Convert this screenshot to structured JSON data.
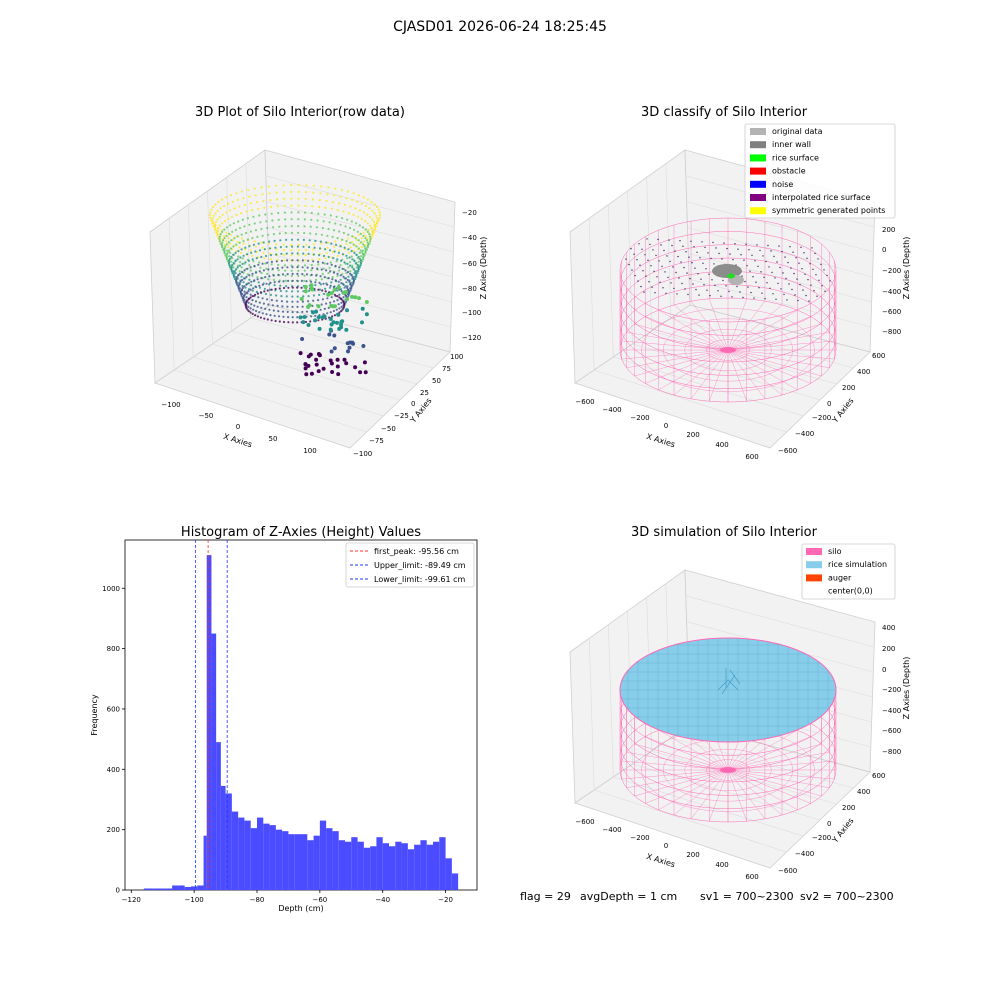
{
  "suptitle": "CJASD01 2026-06-24 18:25:45",
  "footer": {
    "flag": "flag = 29",
    "avg_depth": "avgDepth = 1 cm",
    "sv1": "sv1 = 700~2300",
    "sv2": "sv2 = 700~2300"
  },
  "colors": {
    "hist_bar": "#4b4bff",
    "peak_line": "#ff3333",
    "limit_line": "#2233ff",
    "silo": "#ff69b4",
    "rice": "#87ceeb",
    "auger": "#ff4500",
    "viridis": [
      "#440154",
      "#3b528b",
      "#21918c",
      "#5ec962",
      "#fde725"
    ]
  },
  "panel_tl": {
    "title": "3D Plot of Silo Interior(row data)",
    "xlabel": "X Axies",
    "ylabel": "Y Axies",
    "zlabel": "Z Axies (Depth)",
    "xticks": [
      "−100",
      "−50",
      "0",
      "50",
      "100"
    ],
    "yticks": [
      "100",
      "75",
      "50",
      "25",
      "0",
      "−25",
      "−50",
      "−75",
      "−100"
    ],
    "zticks": [
      "−20",
      "−40",
      "−60",
      "−80",
      "−100",
      "−120"
    ]
  },
  "panel_tr": {
    "title": "3D classify of Silo Interior",
    "xlabel": "X Axies",
    "ylabel": "Y Axies",
    "zlabel": "Z Axies (Depth)",
    "xticks": [
      "−600",
      "−400",
      "−200",
      "0",
      "200",
      "400",
      "600"
    ],
    "yticks": [
      "600",
      "400",
      "200",
      "0",
      "−200",
      "−400",
      "−600"
    ],
    "zticks": [
      "200",
      "0",
      "−200",
      "−400",
      "−600",
      "−800"
    ],
    "legend": [
      {
        "label": "original data",
        "color": "#b3b3b3"
      },
      {
        "label": "inner wall",
        "color": "#808080"
      },
      {
        "label": "rice surface",
        "color": "#00ff00"
      },
      {
        "label": "obstacle",
        "color": "#ff0000"
      },
      {
        "label": "noise",
        "color": "#0000ff"
      },
      {
        "label": "interpolated rice surface",
        "color": "#800080"
      },
      {
        "label": "symmetric generated points",
        "color": "#ffff00"
      }
    ]
  },
  "panel_br": {
    "title": "3D simulation of Silo Interior",
    "xlabel": "X Axies",
    "ylabel": "Y Axies",
    "zlabel": "Z Axies (Depth)",
    "xticks": [
      "−600",
      "−400",
      "−200",
      "0",
      "200",
      "400",
      "600"
    ],
    "yticks": [
      "600",
      "400",
      "200",
      "0",
      "−200",
      "−400",
      "−600"
    ],
    "zticks": [
      "400",
      "200",
      "0",
      "−200",
      "−400",
      "−600",
      "−800"
    ],
    "legend": [
      {
        "label": "silo",
        "color": "#ff69b4"
      },
      {
        "label": "rice simulation",
        "color": "#87ceeb"
      },
      {
        "label": "auger",
        "color": "#ff4500"
      },
      {
        "label": "center(0,0)",
        "color": "#ffffff"
      }
    ]
  },
  "chart_data": {
    "type": "bar",
    "title": "Histogram of Z-Axies (Height) Values",
    "xlabel": "Depth (cm)",
    "ylabel": "Frequency",
    "xlim": [
      -122,
      -10
    ],
    "ylim": [
      0,
      1160
    ],
    "xticks": [
      -120,
      -100,
      -80,
      -60,
      -40,
      -20
    ],
    "yticks": [
      0,
      200,
      400,
      600,
      800,
      1000
    ],
    "bins": [
      {
        "x0": -116,
        "x1": -113,
        "value": 5
      },
      {
        "x0": -113,
        "x1": -110,
        "value": 5
      },
      {
        "x0": -110,
        "x1": -107,
        "value": 5
      },
      {
        "x0": -107,
        "x1": -105,
        "value": 15
      },
      {
        "x0": -105,
        "x1": -103,
        "value": 15
      },
      {
        "x0": -103,
        "x1": -101,
        "value": 10
      },
      {
        "x0": -101,
        "x1": -99,
        "value": 12
      },
      {
        "x0": -99,
        "x1": -97,
        "value": 15
      },
      {
        "x0": -97,
        "x1": -96,
        "value": 180
      },
      {
        "x0": -96,
        "x1": -94.5,
        "value": 1110
      },
      {
        "x0": -94.5,
        "x1": -93,
        "value": 850
      },
      {
        "x0": -93,
        "x1": -91.5,
        "value": 490
      },
      {
        "x0": -91.5,
        "x1": -90,
        "value": 345
      },
      {
        "x0": -90,
        "x1": -88,
        "value": 320
      },
      {
        "x0": -88,
        "x1": -86,
        "value": 260
      },
      {
        "x0": -86,
        "x1": -84,
        "value": 240
      },
      {
        "x0": -84,
        "x1": -82,
        "value": 230
      },
      {
        "x0": -82,
        "x1": -80,
        "value": 205
      },
      {
        "x0": -80,
        "x1": -78,
        "value": 240
      },
      {
        "x0": -78,
        "x1": -76,
        "value": 220
      },
      {
        "x0": -76,
        "x1": -74,
        "value": 215
      },
      {
        "x0": -74,
        "x1": -72,
        "value": 200
      },
      {
        "x0": -72,
        "x1": -70,
        "value": 195
      },
      {
        "x0": -70,
        "x1": -68,
        "value": 185
      },
      {
        "x0": -68,
        "x1": -66,
        "value": 185
      },
      {
        "x0": -66,
        "x1": -64,
        "value": 185
      },
      {
        "x0": -64,
        "x1": -62,
        "value": 165
      },
      {
        "x0": -62,
        "x1": -60,
        "value": 180
      },
      {
        "x0": -60,
        "x1": -58,
        "value": 230
      },
      {
        "x0": -58,
        "x1": -56,
        "value": 205
      },
      {
        "x0": -56,
        "x1": -54,
        "value": 195
      },
      {
        "x0": -54,
        "x1": -52,
        "value": 165
      },
      {
        "x0": -52,
        "x1": -50,
        "value": 160
      },
      {
        "x0": -50,
        "x1": -48,
        "value": 175
      },
      {
        "x0": -48,
        "x1": -46,
        "value": 160
      },
      {
        "x0": -46,
        "x1": -44,
        "value": 140
      },
      {
        "x0": -44,
        "x1": -42,
        "value": 145
      },
      {
        "x0": -42,
        "x1": -40,
        "value": 175
      },
      {
        "x0": -40,
        "x1": -38,
        "value": 155
      },
      {
        "x0": -38,
        "x1": -36,
        "value": 145
      },
      {
        "x0": -36,
        "x1": -34,
        "value": 160
      },
      {
        "x0": -34,
        "x1": -32,
        "value": 155
      },
      {
        "x0": -32,
        "x1": -30,
        "value": 135
      },
      {
        "x0": -30,
        "x1": -28,
        "value": 150
      },
      {
        "x0": -28,
        "x1": -26,
        "value": 165
      },
      {
        "x0": -26,
        "x1": -24,
        "value": 150
      },
      {
        "x0": -24,
        "x1": -22,
        "value": 160
      },
      {
        "x0": -22,
        "x1": -20,
        "value": 175
      },
      {
        "x0": -20,
        "x1": -18,
        "value": 105
      },
      {
        "x0": -18,
        "x1": -16,
        "value": 55
      }
    ],
    "vlines": [
      {
        "label": "first_peak: -95.56 cm",
        "x": -95.56,
        "color": "#ff3333"
      },
      {
        "label": "Upper_limit: -89.49 cm",
        "x": -89.49,
        "color": "#2233ff"
      },
      {
        "label": "Lower_limit: -99.61 cm",
        "x": -99.61,
        "color": "#2233ff"
      }
    ],
    "legend_position": "top-right"
  }
}
